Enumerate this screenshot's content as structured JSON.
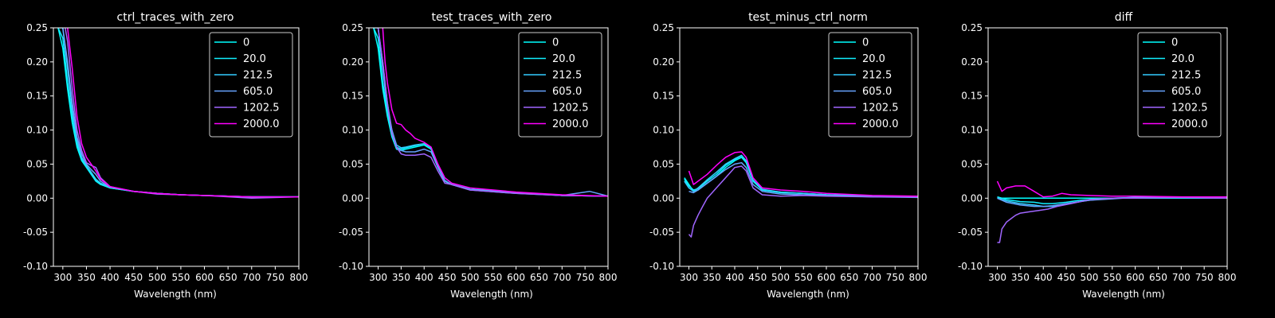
{
  "colors": {
    "background": "#000000",
    "axes": "#ffffff",
    "text": "#ffffff"
  },
  "chart_data": [
    {
      "type": "line",
      "title": "ctrl_traces_with_zero",
      "xlabel": "Wavelength (nm)",
      "ylabel": "",
      "xlim": [
        280,
        800
      ],
      "ylim": [
        -0.1,
        0.25
      ],
      "xticks": [
        300,
        350,
        400,
        450,
        500,
        550,
        600,
        650,
        700,
        750,
        800
      ],
      "yticks": [
        -0.1,
        -0.05,
        0.0,
        0.05,
        0.1,
        0.15,
        0.2,
        0.25
      ],
      "legend_position": "upper right",
      "grid": false,
      "series": [
        {
          "name": "0",
          "color": "#00ffff",
          "x": [
            290,
            300,
            310,
            320,
            330,
            340,
            350,
            360,
            370,
            380,
            400,
            450,
            500,
            550,
            600,
            700,
            800
          ],
          "y": [
            0.25,
            0.22,
            0.16,
            0.11,
            0.075,
            0.055,
            0.045,
            0.035,
            0.025,
            0.02,
            0.015,
            0.01,
            0.007,
            0.005,
            0.004,
            0.002,
            0.002
          ]
        },
        {
          "name": "20.0",
          "color": "#10efff",
          "x": [
            290,
            300,
            310,
            320,
            330,
            340,
            350,
            360,
            370,
            380,
            400,
            450,
            500,
            550,
            600,
            700,
            800
          ],
          "y": [
            0.25,
            0.235,
            0.17,
            0.12,
            0.08,
            0.058,
            0.046,
            0.036,
            0.026,
            0.021,
            0.015,
            0.01,
            0.007,
            0.005,
            0.004,
            0.002,
            0.002
          ]
        },
        {
          "name": "212.5",
          "color": "#33ccff",
          "x": [
            290,
            300,
            310,
            320,
            330,
            340,
            350,
            360,
            370,
            380,
            400,
            450,
            500,
            550,
            600,
            700,
            800
          ],
          "y": [
            0.25,
            0.25,
            0.19,
            0.13,
            0.085,
            0.06,
            0.048,
            0.038,
            0.028,
            0.022,
            0.016,
            0.01,
            0.007,
            0.005,
            0.004,
            0.002,
            0.002
          ]
        },
        {
          "name": "605.0",
          "color": "#66a3ff",
          "x": [
            300,
            310,
            320,
            330,
            340,
            350,
            360,
            370,
            380,
            400,
            450,
            500,
            550,
            600,
            700,
            800
          ],
          "y": [
            0.25,
            0.2,
            0.14,
            0.09,
            0.065,
            0.05,
            0.042,
            0.035,
            0.025,
            0.016,
            0.01,
            0.007,
            0.005,
            0.004,
            0.002,
            0.002
          ]
        },
        {
          "name": "1202.5",
          "color": "#a066ff",
          "x": [
            305,
            310,
            320,
            330,
            340,
            350,
            360,
            370,
            380,
            400,
            450,
            500,
            550,
            600,
            700,
            800
          ],
          "y": [
            0.25,
            0.23,
            0.16,
            0.1,
            0.07,
            0.052,
            0.048,
            0.045,
            0.03,
            0.017,
            0.01,
            0.006,
            0.005,
            0.004,
            0.0,
            0.002
          ]
        },
        {
          "name": "2000.0",
          "color": "#ff00ff",
          "x": [
            310,
            315,
            320,
            330,
            340,
            350,
            360,
            370,
            380,
            400,
            450,
            500,
            550,
            600,
            700,
            800
          ],
          "y": [
            0.25,
            0.22,
            0.19,
            0.12,
            0.08,
            0.06,
            0.05,
            0.04,
            0.028,
            0.017,
            0.01,
            0.007,
            0.005,
            0.004,
            0.002,
            0.002
          ]
        }
      ]
    },
    {
      "type": "line",
      "title": "test_traces_with_zero",
      "xlabel": "Wavelength (nm)",
      "ylabel": "",
      "xlim": [
        280,
        800
      ],
      "ylim": [
        -0.1,
        0.25
      ],
      "xticks": [
        300,
        350,
        400,
        450,
        500,
        550,
        600,
        650,
        700,
        750,
        800
      ],
      "yticks": [
        -0.1,
        -0.05,
        0.0,
        0.05,
        0.1,
        0.15,
        0.2,
        0.25
      ],
      "legend_position": "upper right",
      "grid": false,
      "series": [
        {
          "name": "0",
          "color": "#00ffff",
          "x": [
            290,
            300,
            310,
            320,
            330,
            340,
            350,
            360,
            380,
            400,
            415,
            430,
            445,
            460,
            500,
            600,
            700,
            800
          ],
          "y": [
            0.25,
            0.22,
            0.16,
            0.12,
            0.09,
            0.072,
            0.07,
            0.072,
            0.075,
            0.078,
            0.072,
            0.045,
            0.025,
            0.02,
            0.013,
            0.008,
            0.004,
            0.003
          ]
        },
        {
          "name": "20.0",
          "color": "#10efff",
          "x": [
            290,
            300,
            310,
            320,
            330,
            340,
            350,
            360,
            380,
            400,
            415,
            430,
            445,
            460,
            500,
            600,
            700,
            800
          ],
          "y": [
            0.25,
            0.235,
            0.17,
            0.125,
            0.095,
            0.075,
            0.072,
            0.074,
            0.077,
            0.08,
            0.074,
            0.046,
            0.026,
            0.02,
            0.013,
            0.008,
            0.004,
            0.003
          ]
        },
        {
          "name": "212.5",
          "color": "#33ccff",
          "x": [
            290,
            300,
            310,
            320,
            330,
            340,
            350,
            360,
            380,
            400,
            415,
            430,
            445,
            460,
            500,
            600,
            700,
            800
          ],
          "y": [
            0.25,
            0.25,
            0.19,
            0.13,
            0.1,
            0.078,
            0.074,
            0.075,
            0.078,
            0.08,
            0.075,
            0.047,
            0.026,
            0.02,
            0.013,
            0.008,
            0.004,
            0.003
          ]
        },
        {
          "name": "605.0",
          "color": "#66a3ff",
          "x": [
            300,
            310,
            320,
            330,
            340,
            350,
            360,
            380,
            400,
            415,
            430,
            445,
            460,
            500,
            600,
            700,
            760,
            800
          ],
          "y": [
            0.25,
            0.2,
            0.14,
            0.1,
            0.075,
            0.07,
            0.068,
            0.068,
            0.072,
            0.068,
            0.045,
            0.025,
            0.02,
            0.012,
            0.007,
            0.004,
            0.01,
            0.003
          ]
        },
        {
          "name": "1202.5",
          "color": "#a066ff",
          "x": [
            300,
            310,
            320,
            330,
            340,
            350,
            360,
            380,
            400,
            415,
            430,
            445,
            460,
            500,
            600,
            700,
            800
          ],
          "y": [
            0.25,
            0.2,
            0.14,
            0.095,
            0.075,
            0.065,
            0.063,
            0.063,
            0.065,
            0.06,
            0.04,
            0.022,
            0.02,
            0.012,
            0.007,
            0.004,
            0.003
          ]
        },
        {
          "name": "2000.0",
          "color": "#ff00ff",
          "x": [
            310,
            315,
            320,
            330,
            340,
            350,
            360,
            370,
            380,
            400,
            415,
            430,
            445,
            460,
            500,
            600,
            700,
            800
          ],
          "y": [
            0.25,
            0.2,
            0.17,
            0.13,
            0.11,
            0.108,
            0.1,
            0.095,
            0.088,
            0.082,
            0.075,
            0.05,
            0.03,
            0.022,
            0.015,
            0.009,
            0.005,
            0.003
          ]
        }
      ]
    },
    {
      "type": "line",
      "title": "test_minus_ctrl_norm",
      "xlabel": "Wavelength (nm)",
      "ylabel": "",
      "xlim": [
        280,
        800
      ],
      "ylim": [
        -0.1,
        0.25
      ],
      "xticks": [
        300,
        350,
        400,
        450,
        500,
        550,
        600,
        650,
        700,
        750,
        800
      ],
      "yticks": [
        -0.1,
        -0.05,
        0.0,
        0.05,
        0.1,
        0.15,
        0.2,
        0.25
      ],
      "legend_position": "upper right",
      "grid": false,
      "series": [
        {
          "name": "0",
          "color": "#00ffff",
          "x": [
            290,
            300,
            310,
            320,
            340,
            360,
            380,
            400,
            415,
            425,
            440,
            460,
            500,
            550,
            600,
            700,
            800
          ],
          "y": [
            0.03,
            0.02,
            0.01,
            0.012,
            0.022,
            0.032,
            0.045,
            0.055,
            0.06,
            0.052,
            0.025,
            0.012,
            0.008,
            0.007,
            0.005,
            0.003,
            0.002
          ]
        },
        {
          "name": "20.0",
          "color": "#10efff",
          "x": [
            290,
            300,
            310,
            320,
            340,
            360,
            380,
            400,
            415,
            425,
            440,
            460,
            500,
            550,
            600,
            700,
            800
          ],
          "y": [
            0.028,
            0.018,
            0.012,
            0.014,
            0.025,
            0.035,
            0.048,
            0.057,
            0.062,
            0.054,
            0.026,
            0.012,
            0.009,
            0.007,
            0.005,
            0.003,
            0.002
          ]
        },
        {
          "name": "212.5",
          "color": "#33ccff",
          "x": [
            290,
            300,
            310,
            320,
            340,
            360,
            380,
            400,
            415,
            425,
            440,
            460,
            500,
            550,
            600,
            700,
            800
          ],
          "y": [
            0.025,
            0.015,
            0.01,
            0.015,
            0.027,
            0.038,
            0.05,
            0.058,
            0.063,
            0.055,
            0.027,
            0.013,
            0.009,
            0.007,
            0.005,
            0.003,
            0.002
          ]
        },
        {
          "name": "605.0",
          "color": "#66a3ff",
          "x": [
            300,
            310,
            320,
            340,
            360,
            380,
            400,
            415,
            425,
            440,
            460,
            500,
            550,
            600,
            700,
            800
          ],
          "y": [
            0.01,
            0.008,
            0.012,
            0.022,
            0.032,
            0.042,
            0.05,
            0.052,
            0.045,
            0.02,
            0.01,
            0.006,
            0.005,
            0.004,
            0.002,
            0.001
          ]
        },
        {
          "name": "1202.5",
          "color": "#a066ff",
          "x": [
            300,
            305,
            310,
            320,
            330,
            340,
            360,
            380,
            400,
            415,
            425,
            440,
            460,
            500,
            550,
            600,
            700,
            800
          ],
          "y": [
            -0.053,
            -0.057,
            -0.04,
            -0.025,
            -0.012,
            0.0,
            0.015,
            0.03,
            0.045,
            0.047,
            0.04,
            0.015,
            0.005,
            0.003,
            0.004,
            0.003,
            0.002,
            0.002
          ]
        },
        {
          "name": "2000.0",
          "color": "#ff00ff",
          "x": [
            300,
            310,
            320,
            340,
            360,
            380,
            400,
            415,
            425,
            440,
            460,
            500,
            550,
            600,
            700,
            800
          ],
          "y": [
            0.04,
            0.02,
            0.025,
            0.035,
            0.048,
            0.06,
            0.067,
            0.068,
            0.06,
            0.03,
            0.015,
            0.012,
            0.01,
            0.007,
            0.004,
            0.003
          ]
        }
      ]
    },
    {
      "type": "line",
      "title": "diff",
      "xlabel": "Wavelength (nm)",
      "ylabel": "",
      "xlim": [
        280,
        800
      ],
      "ylim": [
        -0.1,
        0.25
      ],
      "xticks": [
        300,
        350,
        400,
        450,
        500,
        550,
        600,
        650,
        700,
        750,
        800
      ],
      "yticks": [
        -0.1,
        -0.05,
        0.0,
        0.05,
        0.1,
        0.15,
        0.2,
        0.25
      ],
      "legend_position": "upper right",
      "grid": false,
      "series": [
        {
          "name": "0",
          "color": "#00ffff",
          "x": [
            300,
            400,
            500,
            600,
            700,
            800
          ],
          "y": [
            0.0,
            0.0,
            0.0,
            0.0,
            0.0,
            0.0
          ]
        },
        {
          "name": "20.0",
          "color": "#10efff",
          "x": [
            300,
            320,
            350,
            380,
            400,
            420,
            450,
            480,
            500,
            550,
            600,
            700,
            800
          ],
          "y": [
            0.002,
            -0.002,
            -0.005,
            -0.006,
            -0.008,
            -0.008,
            -0.006,
            -0.003,
            -0.002,
            0.0,
            0.001,
            0.001,
            0.0
          ]
        },
        {
          "name": "212.5",
          "color": "#33ccff",
          "x": [
            300,
            320,
            350,
            380,
            400,
            420,
            450,
            480,
            500,
            550,
            600,
            700,
            800
          ],
          "y": [
            0.0,
            -0.004,
            -0.008,
            -0.01,
            -0.012,
            -0.012,
            -0.009,
            -0.005,
            -0.003,
            0.0,
            0.001,
            0.001,
            0.0
          ]
        },
        {
          "name": "605.0",
          "color": "#66a3ff",
          "x": [
            300,
            320,
            350,
            380,
            400,
            420,
            450,
            480,
            500,
            550,
            600,
            700,
            800
          ],
          "y": [
            0.0,
            -0.006,
            -0.01,
            -0.012,
            -0.012,
            -0.011,
            -0.008,
            -0.005,
            -0.003,
            -0.001,
            0.001,
            0.001,
            0.0
          ]
        },
        {
          "name": "1202.5",
          "color": "#a066ff",
          "x": [
            300,
            305,
            310,
            320,
            330,
            340,
            350,
            370,
            390,
            410,
            430,
            460,
            480,
            500,
            550,
            600,
            700,
            800
          ],
          "y": [
            -0.065,
            -0.065,
            -0.045,
            -0.035,
            -0.03,
            -0.025,
            -0.022,
            -0.02,
            -0.018,
            -0.016,
            -0.012,
            -0.008,
            -0.005,
            -0.002,
            0.0,
            0.0,
            0.001,
            0.0
          ]
        },
        {
          "name": "2000.0",
          "color": "#ff00ff",
          "x": [
            300,
            310,
            320,
            340,
            360,
            380,
            400,
            420,
            440,
            460,
            500,
            550,
            600,
            700,
            800
          ],
          "y": [
            0.025,
            0.01,
            0.015,
            0.018,
            0.018,
            0.01,
            0.002,
            0.003,
            0.007,
            0.005,
            0.004,
            0.003,
            0.003,
            0.002,
            0.002
          ]
        }
      ]
    }
  ]
}
